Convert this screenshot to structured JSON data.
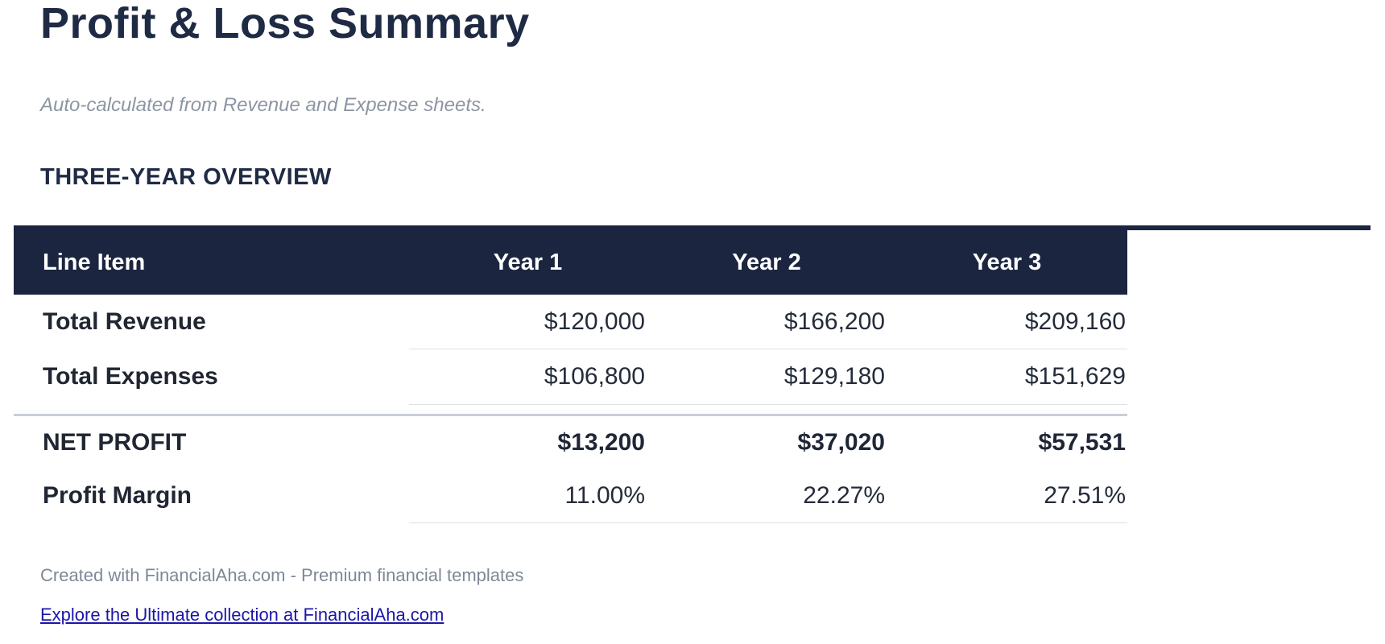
{
  "page": {
    "title": "Profit & Loss Summary",
    "subtitle": "Auto-calculated from Revenue and Expense sheets.",
    "section_heading": "THREE-YEAR OVERVIEW"
  },
  "table": {
    "columns": [
      "Line Item",
      "Year 1",
      "Year 2",
      "Year 3"
    ],
    "rows": [
      {
        "label": "Total Revenue",
        "values": [
          "$120,000",
          "$166,200",
          "$209,160"
        ],
        "emphasis": false
      },
      {
        "label": "Total Expenses",
        "values": [
          "$106,800",
          "$129,180",
          "$151,629"
        ],
        "emphasis": false
      },
      {
        "label": "NET PROFIT",
        "values": [
          "$13,200",
          "$37,020",
          "$57,531"
        ],
        "emphasis": true
      },
      {
        "label": "Profit Margin",
        "values": [
          "11.00%",
          "22.27%",
          "27.51%"
        ],
        "emphasis": false
      }
    ]
  },
  "footer": {
    "credit": "Created with FinancialAha.com - Premium financial templates",
    "link_label": "Explore the Ultimate collection at FinancialAha.com"
  },
  "colors": {
    "header_navy": "#1B2540",
    "heading_text": "#1F2A44",
    "body_text": "#242B39",
    "subtitle_gray": "#8C95A3",
    "footer_gray": "#7E8896",
    "link_blue": "#1C16A8",
    "row_border": "#DDE1E6",
    "total_border": "#C9CFD8"
  }
}
